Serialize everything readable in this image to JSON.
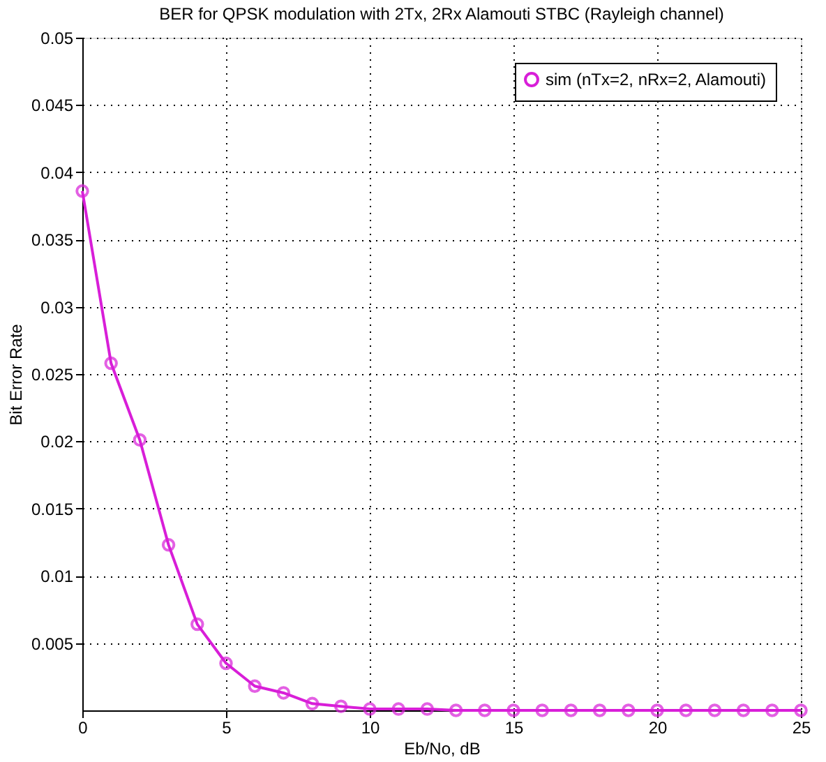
{
  "chart_data": {
    "type": "line",
    "title": "BER for QPSK modulation with 2Tx, 2Rx Alamouti STBC (Rayleigh channel)",
    "xlabel": "Eb/No, dB",
    "ylabel": "Bit Error Rate",
    "x": [
      0,
      1,
      2,
      3,
      4,
      5,
      6,
      7,
      8,
      9,
      10,
      11,
      12,
      13,
      14,
      15,
      16,
      17,
      18,
      19,
      20,
      21,
      22,
      23,
      24,
      25
    ],
    "series": [
      {
        "name": "sim (nTx=2, nRx=2, Alamouti)",
        "color": "#d81ed8",
        "values": [
          0.0386,
          0.0258,
          0.0201,
          0.0123,
          0.0064,
          0.0035,
          0.0018,
          0.0013,
          0.0005,
          0.0003,
          0.0001,
          0.0001,
          0.0001,
          0,
          0,
          0,
          0,
          0,
          0,
          0,
          0,
          0,
          0,
          0,
          0,
          0
        ]
      }
    ],
    "xlim": [
      0,
      25
    ],
    "xticks": [
      0,
      5,
      10,
      15,
      20,
      25
    ],
    "ylim": [
      0,
      0.05
    ],
    "yticks": [
      0.005,
      0.01,
      0.015,
      0.02,
      0.025,
      0.03,
      0.035,
      0.04,
      0.045,
      0.05
    ],
    "grid": true,
    "legend": "top right",
    "marker": "circle",
    "line_style": "solid"
  }
}
